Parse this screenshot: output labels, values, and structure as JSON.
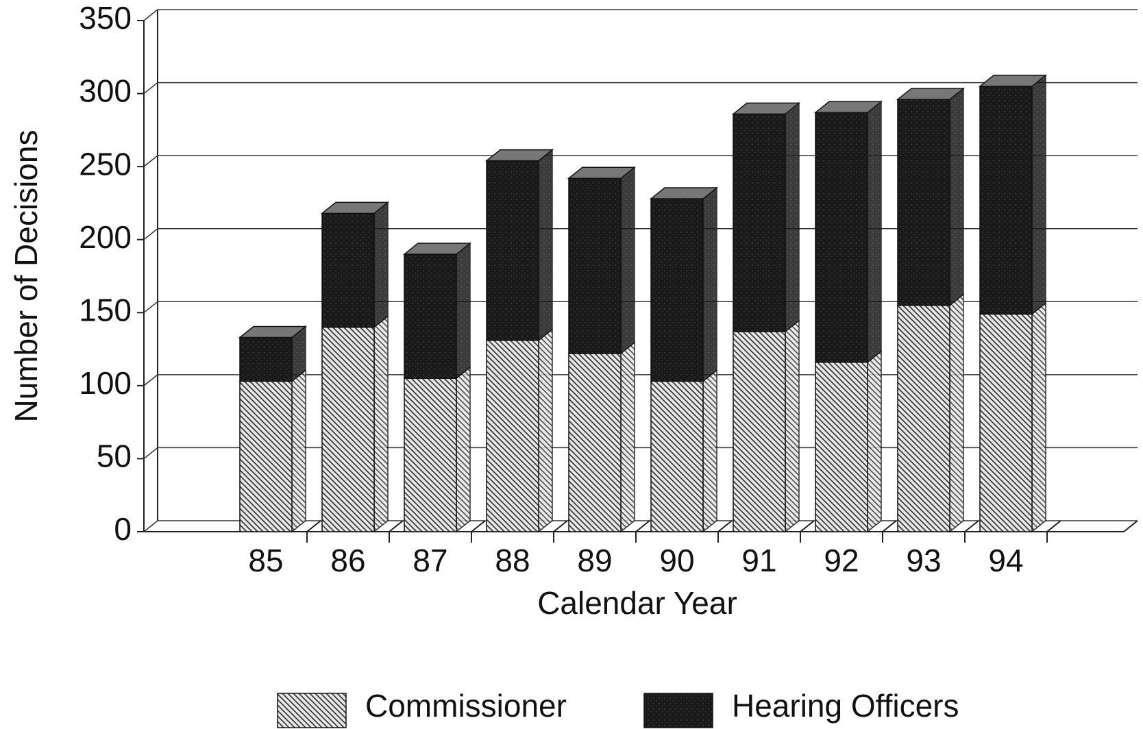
{
  "chart_data": {
    "type": "bar3d_stacked",
    "x_label": "Calendar Year",
    "y_label": "Number of Decisions",
    "categories": [
      "85",
      "86",
      "87",
      "88",
      "89",
      "90",
      "91",
      "92",
      "93",
      "94"
    ],
    "series": [
      {
        "name": "Commissioner",
        "color": "#3a3a3a",
        "values": [
          103,
          140,
          105,
          131,
          122,
          103,
          137,
          116,
          155,
          149
        ]
      },
      {
        "name": "Hearing Officers",
        "color": "#1a1a1a",
        "values": [
          30,
          78,
          85,
          123,
          120,
          125,
          149,
          171,
          141,
          156
        ]
      }
    ],
    "ylim": [
      0,
      350
    ],
    "yticks": [
      0,
      50,
      100,
      150,
      200,
      250,
      300,
      350
    ],
    "grid": true,
    "stacked": true
  }
}
